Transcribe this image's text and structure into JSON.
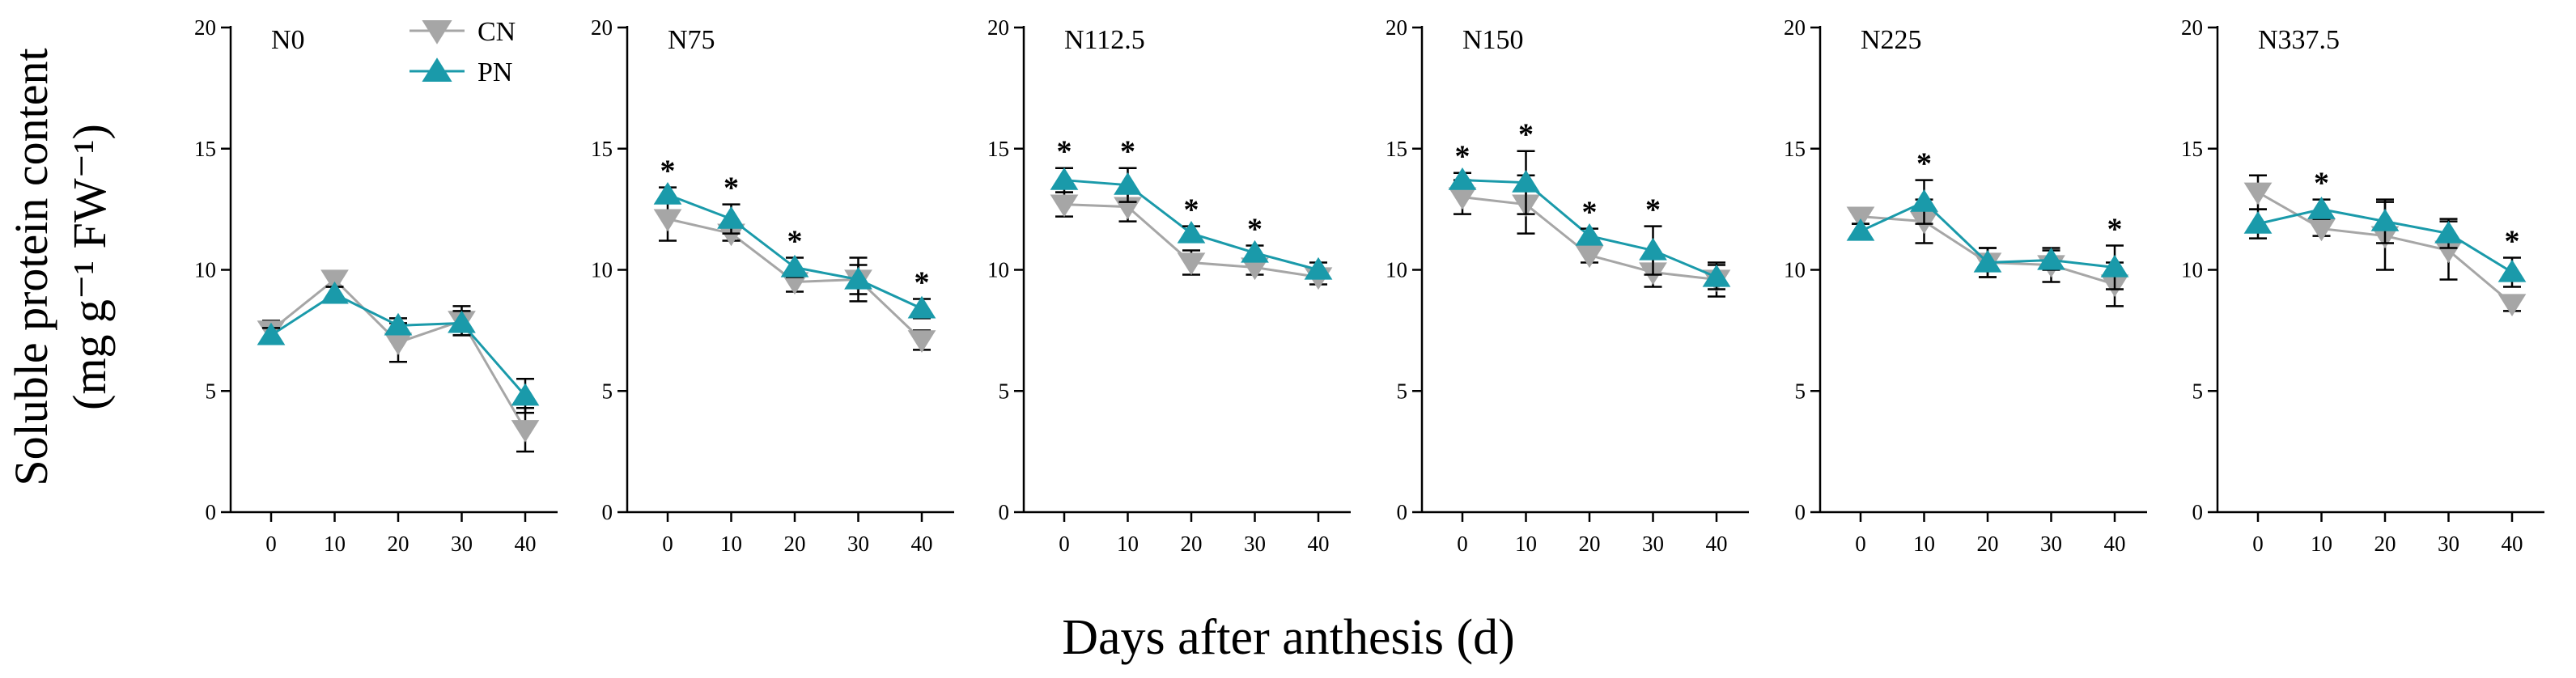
{
  "chart_data": {
    "type": "line",
    "ylabel_line1": "Soluble protein content",
    "ylabel_line2": "(mg g⁻¹ FW⁻¹)",
    "xlabel": "Days after anthesis (d)",
    "x": [
      0,
      10,
      20,
      30,
      40
    ],
    "x_tick_labels": [
      "0",
      "10",
      "20",
      "30",
      "40"
    ],
    "ylim": [
      0,
      20
    ],
    "y_ticks": [
      0,
      5,
      10,
      15,
      20
    ],
    "y_tick_labels": [
      "0",
      "5",
      "10",
      "15",
      "20"
    ],
    "legend": [
      {
        "name": "CN",
        "marker": "triangle-down",
        "color": "#a6a6a6"
      },
      {
        "name": "PN",
        "marker": "triangle-up",
        "color": "#1a9aaa"
      }
    ],
    "significance_marker": "*",
    "panels": [
      {
        "title": "N0",
        "series": [
          {
            "name": "CN",
            "values": [
              7.5,
              9.6,
              7.0,
              7.9,
              3.4
            ],
            "errors": [
              0.4,
              0.3,
              0.8,
              0.6,
              0.9
            ]
          },
          {
            "name": "PN",
            "values": [
              7.3,
              9.0,
              7.7,
              7.8,
              4.8
            ],
            "errors": [
              0.3,
              0.3,
              0.3,
              0.5,
              0.7
            ]
          }
        ],
        "significant": []
      },
      {
        "title": "N75",
        "series": [
          {
            "name": "CN",
            "values": [
              12.1,
              11.5,
              9.5,
              9.6,
              7.1
            ],
            "errors": [
              0.9,
              0.3,
              0.4,
              0.6,
              0.4
            ]
          },
          {
            "name": "PN",
            "values": [
              13.1,
              12.1,
              10.1,
              9.6,
              8.4
            ],
            "errors": [
              0.3,
              0.6,
              0.4,
              0.9,
              0.4
            ]
          }
        ],
        "significant": [
          0,
          1,
          2,
          4
        ]
      },
      {
        "title": "N112.5",
        "series": [
          {
            "name": "CN",
            "values": [
              12.7,
              12.6,
              10.3,
              10.1,
              9.7
            ],
            "errors": [
              0.5,
              0.6,
              0.5,
              0.3,
              0.3
            ]
          },
          {
            "name": "PN",
            "values": [
              13.7,
              13.5,
              11.5,
              10.7,
              10.0
            ],
            "errors": [
              0.5,
              0.7,
              0.3,
              0.3,
              0.3
            ]
          }
        ],
        "significant": [
          0,
          1,
          2,
          3
        ]
      },
      {
        "title": "N150",
        "series": [
          {
            "name": "CN",
            "values": [
              13.0,
              12.7,
              10.6,
              9.9,
              9.6
            ],
            "errors": [
              0.7,
              1.2,
              0.3,
              0.6,
              0.7
            ]
          },
          {
            "name": "PN",
            "values": [
              13.7,
              13.6,
              11.4,
              10.8,
              9.7
            ],
            "errors": [
              0.3,
              1.3,
              0.3,
              1.0,
              0.5
            ]
          }
        ],
        "significant": [
          0,
          1,
          2,
          3
        ]
      },
      {
        "title": "N225",
        "series": [
          {
            "name": "CN",
            "values": [
              12.2,
              12.0,
              10.3,
              10.2,
              9.4
            ],
            "errors": [
              0.3,
              0.9,
              0.6,
              0.7,
              0.9
            ]
          },
          {
            "name": "PN",
            "values": [
              11.6,
              12.8,
              10.3,
              10.4,
              10.1
            ],
            "errors": [
              0.3,
              0.9,
              0.6,
              0.4,
              0.9
            ]
          }
        ],
        "significant": [
          1,
          4
        ]
      },
      {
        "title": "N337.5",
        "series": [
          {
            "name": "CN",
            "values": [
              13.2,
              11.7,
              11.4,
              10.8,
              8.6
            ],
            "errors": [
              0.7,
              0.3,
              1.4,
              1.2,
              0.3
            ]
          },
          {
            "name": "PN",
            "values": [
              11.9,
              12.5,
              12.0,
              11.5,
              9.9
            ],
            "errors": [
              0.6,
              0.4,
              0.9,
              0.6,
              0.6
            ]
          }
        ],
        "significant": [
          1,
          4
        ]
      }
    ]
  }
}
